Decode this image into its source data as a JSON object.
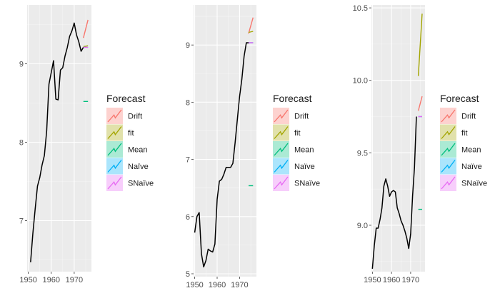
{
  "chart_data": [
    {
      "type": "line",
      "title": "",
      "xlabel": "",
      "ylabel": "",
      "xlim": [
        1949.5,
        1977.5
      ],
      "ylim": [
        6.35,
        9.75
      ],
      "x_ticks": [
        1950,
        1960,
        1970
      ],
      "x_tick_labels": [
        "1950",
        "1960",
        "1970"
      ],
      "y_ticks": [
        7,
        8,
        9
      ],
      "y_tick_labels": [
        "7",
        "8",
        "9"
      ],
      "grid": true,
      "series": [
        {
          "name": "",
          "color": "#000000",
          "x": [
            1951,
            1952,
            1953,
            1954,
            1955,
            1956,
            1957,
            1958,
            1959,
            1960,
            1961,
            1962,
            1963,
            1964,
            1965,
            1966,
            1967,
            1968,
            1969,
            1970,
            1971,
            1972,
            1973,
            1974
          ],
          "y": [
            6.47,
            6.84,
            7.15,
            7.44,
            7.55,
            7.71,
            7.83,
            8.14,
            8.74,
            8.89,
            9.04,
            8.55,
            8.54,
            8.92,
            8.95,
            9.1,
            9.21,
            9.35,
            9.42,
            9.52,
            9.37,
            9.28,
            9.16,
            9.21
          ]
        },
        {
          "name": "Drift",
          "color": "#F8766D",
          "x": [
            1974,
            1976
          ],
          "y": [
            9.33,
            9.56
          ]
        },
        {
          "name": "fit",
          "color": "#A3A500",
          "x": [
            1974,
            1976
          ],
          "y": [
            9.22,
            9.23
          ]
        },
        {
          "name": "Mean",
          "color": "#00BF7D",
          "x": [
            1974,
            1976
          ],
          "y": [
            8.52,
            8.52
          ]
        },
        {
          "name": "Naïve",
          "color": "#00B0F6",
          "x": [
            1974,
            1976
          ],
          "y": [
            9.21,
            9.21
          ]
        },
        {
          "name": "SNaïve",
          "color": "#E76BF3",
          "x": [
            1974,
            1976
          ],
          "y": [
            9.21,
            9.21
          ]
        }
      ]
    },
    {
      "type": "line",
      "title": "",
      "xlabel": "",
      "ylabel": "",
      "xlim": [
        1949.5,
        1977.5
      ],
      "ylim": [
        4.95,
        9.7
      ],
      "x_ticks": [
        1950,
        1960,
        1970
      ],
      "x_tick_labels": [
        "1950",
        "1960",
        "1970"
      ],
      "y_ticks": [
        5,
        6,
        7,
        8,
        9
      ],
      "y_tick_labels": [
        "5",
        "6",
        "7",
        "8",
        "9"
      ],
      "grid": true,
      "series": [
        {
          "name": "",
          "color": "#000000",
          "x": [
            1950,
            1951,
            1952,
            1953,
            1954,
            1955,
            1956,
            1957,
            1958,
            1959,
            1960,
            1961,
            1962,
            1963,
            1964,
            1965,
            1966,
            1967,
            1968,
            1969,
            1970,
            1971,
            1972,
            1973,
            1974
          ],
          "y": [
            5.72,
            6.0,
            6.07,
            5.35,
            5.12,
            5.23,
            5.43,
            5.4,
            5.38,
            5.52,
            6.3,
            6.62,
            6.65,
            6.74,
            6.86,
            6.86,
            6.86,
            6.93,
            7.29,
            7.7,
            8.1,
            8.4,
            8.8,
            9.04,
            9.04
          ]
        },
        {
          "name": "Drift",
          "color": "#F8766D",
          "x": [
            1974,
            1976
          ],
          "y": [
            9.2,
            9.48
          ]
        },
        {
          "name": "fit",
          "color": "#A3A500",
          "x": [
            1974,
            1976
          ],
          "y": [
            9.22,
            9.24
          ]
        },
        {
          "name": "Mean",
          "color": "#00BF7D",
          "x": [
            1974,
            1976
          ],
          "y": [
            6.54,
            6.54
          ]
        },
        {
          "name": "Naïve",
          "color": "#00B0F6",
          "x": [
            1974,
            1976
          ],
          "y": [
            9.04,
            9.04
          ]
        },
        {
          "name": "SNaïve",
          "color": "#E76BF3",
          "x": [
            1974,
            1976
          ],
          "y": [
            9.04,
            9.04
          ]
        }
      ]
    },
    {
      "type": "line",
      "title": "",
      "xlabel": "",
      "ylabel": "",
      "xlim": [
        1949.5,
        1977.5
      ],
      "ylim": [
        8.68,
        10.52
      ],
      "x_ticks": [
        1950,
        1960,
        1970
      ],
      "x_tick_labels": [
        "1950",
        "1960",
        "1970"
      ],
      "y_ticks": [
        9.0,
        9.5,
        10.0,
        10.5
      ],
      "y_tick_labels": [
        "9.0",
        "9.5",
        "10.0",
        "10.5"
      ],
      "grid": true,
      "series": [
        {
          "name": "",
          "color": "#000000",
          "x": [
            1950,
            1951,
            1952,
            1953,
            1954,
            1955,
            1956,
            1957,
            1958,
            1959,
            1960,
            1961,
            1962,
            1963,
            1964,
            1965,
            1966,
            1967,
            1968,
            1969,
            1970,
            1971,
            1972,
            1973
          ],
          "y": [
            8.7,
            8.86,
            8.98,
            8.98,
            9.04,
            9.12,
            9.27,
            9.32,
            9.27,
            9.2,
            9.23,
            9.24,
            9.23,
            9.12,
            9.08,
            9.03,
            9.0,
            8.96,
            8.91,
            8.84,
            8.94,
            9.2,
            9.4,
            9.75
          ]
        },
        {
          "name": "Drift",
          "color": "#F8766D",
          "x": [
            1974,
            1976
          ],
          "y": [
            9.79,
            9.89
          ]
        },
        {
          "name": "fit",
          "color": "#A3A500",
          "x": [
            1974,
            1976
          ],
          "y": [
            10.03,
            10.46
          ]
        },
        {
          "name": "Mean",
          "color": "#00BF7D",
          "x": [
            1974,
            1976
          ],
          "y": [
            9.11,
            9.11
          ]
        },
        {
          "name": "Naïve",
          "color": "#00B0F6",
          "x": [
            1974,
            1976
          ],
          "y": [
            9.75,
            9.75
          ]
        },
        {
          "name": "SNaïve",
          "color": "#E76BF3",
          "x": [
            1974,
            1976
          ],
          "y": [
            9.75,
            9.75
          ]
        }
      ]
    }
  ],
  "legend": {
    "title": "Forecast",
    "placement": "right",
    "items": [
      {
        "label": "Drift",
        "color": "#F8766D"
      },
      {
        "label": "fit",
        "color": "#A3A500"
      },
      {
        "label": "Mean",
        "color": "#00BF7D"
      },
      {
        "label": "Naïve",
        "color": "#00B0F6"
      },
      {
        "label": "SNaïve",
        "color": "#E76BF3"
      }
    ]
  },
  "colors": {
    "panel_background": "#EBEBEB",
    "grid_major": "#FFFFFF",
    "history_line": "#000000",
    "tick_text": "#4D4D4D"
  }
}
